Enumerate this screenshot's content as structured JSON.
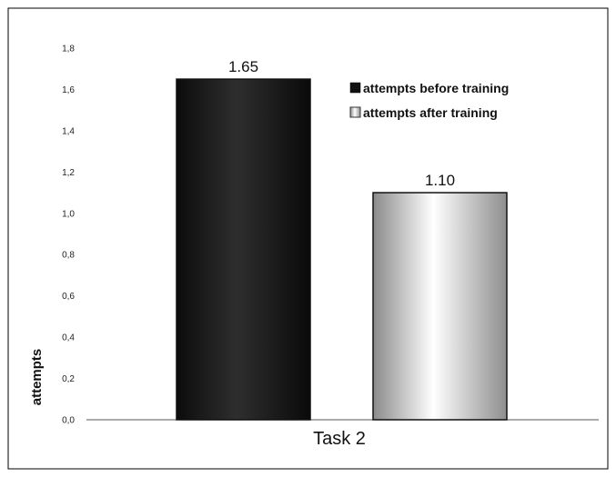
{
  "chart_data": {
    "type": "bar",
    "categories": [
      "Task 2"
    ],
    "series": [
      {
        "name": "attempts before training",
        "values": [
          1.65
        ],
        "value_label": "1.65",
        "color": "#1a1a1a"
      },
      {
        "name": "attempts after training",
        "values": [
          1.1
        ],
        "value_label": "1.10",
        "color": "#b0b0b0"
      }
    ],
    "ylabel": "attempts",
    "ylim": [
      0,
      1.8
    ],
    "yticks": [
      "0,0",
      "0,2",
      "0,4",
      "0,6",
      "0,8",
      "1,0",
      "1,2",
      "1,4",
      "1,6",
      "1,8"
    ],
    "legend_position": "top-right",
    "grid": false
  }
}
